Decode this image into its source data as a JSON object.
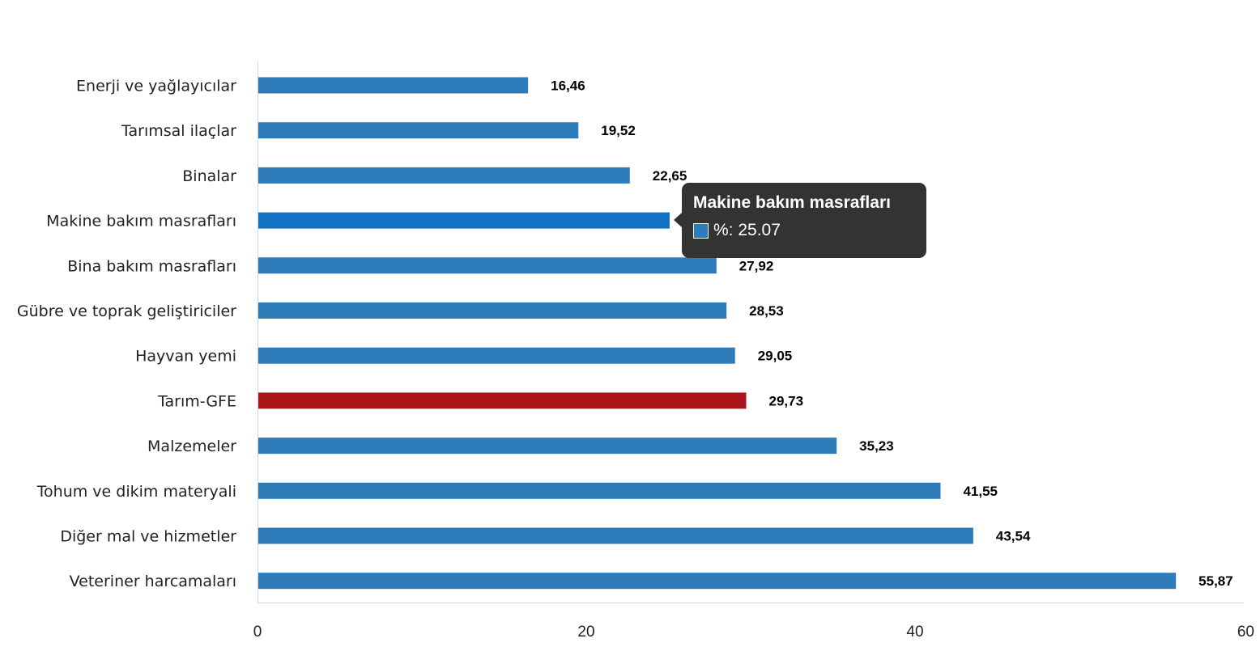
{
  "chart_data": {
    "type": "bar",
    "orientation": "horizontal",
    "categories": [
      "Enerji  ve yağlayıcılar",
      "Tarımsal ilaçlar",
      "Binalar",
      "Makine bakım masrafları",
      "Bina bakım masrafları",
      "Gübre ve toprak geliştiriciler",
      "Hayvan yemi",
      "Tarım-GFE",
      "Malzemeler",
      "Tohum ve dikim materyali",
      "Diğer mal ve hizmetler",
      "Veteriner harcamaları"
    ],
    "values": [
      16.46,
      19.52,
      22.65,
      25.07,
      27.92,
      28.53,
      29.05,
      29.73,
      35.23,
      41.55,
      43.54,
      55.87
    ],
    "value_labels": [
      "16,46",
      "19,52",
      "22,65",
      "25,07",
      "27,92",
      "28,53",
      "29,05",
      "29,73",
      "35,23",
      "41,55",
      "43,54",
      "55,87"
    ],
    "xlim": [
      0,
      60
    ],
    "x_ticks": [
      0,
      20,
      40,
      60
    ],
    "grid": false,
    "title": "",
    "xlabel": "",
    "ylabel": "",
    "colors": {
      "default": "#2e7bb9",
      "highlight": "#ab161b",
      "hover": "#1172c3"
    },
    "highlighted_category_index": 7,
    "hovered_category_index": 3
  },
  "tooltip": {
    "title": "Makine bakım masrafları",
    "label": "%: 25.07"
  }
}
